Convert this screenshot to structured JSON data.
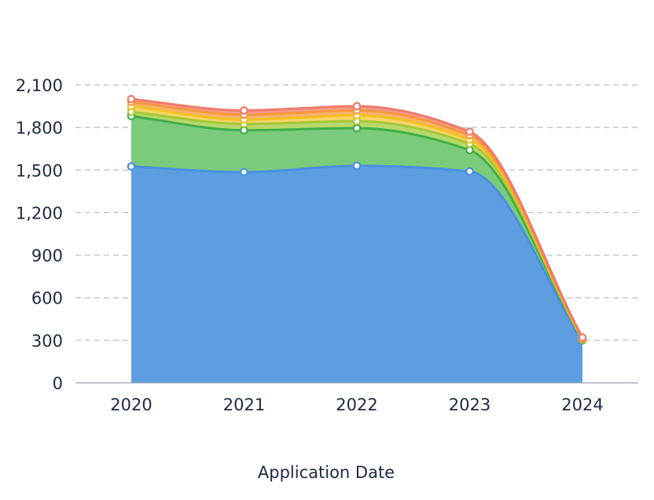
{
  "chart_data": {
    "type": "area",
    "stacked": true,
    "title": "",
    "xlabel": "Application Date",
    "ylabel": "",
    "categories": [
      "2020",
      "2021",
      "2022",
      "2023",
      "2024"
    ],
    "ylim": [
      0,
      2100
    ],
    "yticks": [
      0,
      300,
      600,
      900,
      1200,
      1500,
      1800,
      2100
    ],
    "ytick_labels": [
      "0",
      "300",
      "600",
      "900",
      "1,200",
      "1,500",
      "1,800",
      "2,100"
    ],
    "grid": true,
    "legend": "none",
    "series": [
      {
        "color": "#4a90e2",
        "fill": "#5d9ee0",
        "values": [
          1525,
          1485,
          1530,
          1490,
          300
        ]
      },
      {
        "color": "#3fae49",
        "fill": "#7bcc7a",
        "values": [
          355,
          295,
          265,
          150,
          3
        ]
      },
      {
        "color": "#a6c835",
        "fill": "#b7d86a",
        "values": [
          30,
          45,
          50,
          45,
          3
        ]
      },
      {
        "color": "#f3c01e",
        "fill": "#f7d56a",
        "values": [
          40,
          30,
          40,
          30,
          3
        ]
      },
      {
        "color": "#f7973d",
        "fill": "#f8b26e",
        "values": [
          30,
          35,
          35,
          30,
          3
        ]
      },
      {
        "color": "#f07a6a",
        "fill": "#f49b8c",
        "values": [
          20,
          30,
          30,
          25,
          8
        ]
      }
    ]
  }
}
